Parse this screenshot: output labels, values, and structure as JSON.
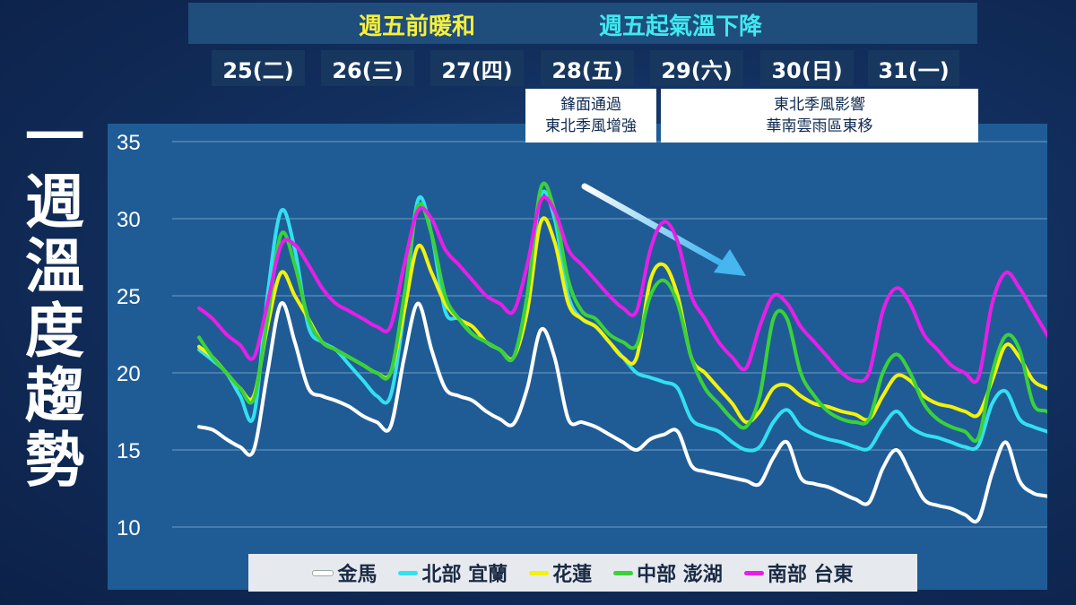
{
  "title_vertical": [
    "一",
    "週",
    "溫",
    "度",
    "趨",
    "勢"
  ],
  "banner": {
    "left": "週五前暖和",
    "right": "週五起氣溫下降"
  },
  "days": [
    "25(二)",
    "26(三)",
    "27(四)",
    "28(五)",
    "29(六)",
    "30(日)",
    "31(一)"
  ],
  "notes": {
    "front": [
      "鋒面通過",
      "東北季風增強"
    ],
    "monsoon": [
      "東北季風影響",
      "華南雲雨區東移"
    ]
  },
  "colors": {
    "金馬": "#ffffff",
    "北部 宜蘭": "#32e0f0",
    "花蓮": "#f2f20a",
    "中部 澎湖": "#3ad13a",
    "南部 台東": "#e81ee8"
  },
  "chart_data": {
    "type": "line",
    "ylim": [
      10,
      35
    ],
    "yticks": [
      35,
      30,
      25,
      20,
      15,
      10
    ],
    "points_per_day": 8,
    "grid": true,
    "legend": "bottom",
    "series": [
      {
        "name": "金馬",
        "values": [
          16.5,
          16.3,
          15.7,
          15.2,
          15.0,
          20.0,
          24.5,
          22.0,
          19.0,
          18.5,
          18.2,
          17.8,
          17.2,
          16.8,
          16.5,
          21.0,
          24.5,
          21.5,
          19.0,
          18.5,
          18.2,
          17.5,
          17.0,
          16.7,
          19.0,
          22.8,
          21.0,
          17.0,
          16.8,
          16.5,
          16.0,
          15.5,
          15.0,
          15.7,
          16.0,
          16.2,
          14.0,
          13.6,
          13.4,
          13.2,
          13.0,
          12.8,
          14.5,
          15.5,
          13.2,
          12.8,
          12.6,
          12.2,
          11.8,
          11.6,
          13.8,
          15.0,
          13.5,
          11.8,
          11.4,
          11.2,
          10.8,
          10.5,
          13.5,
          15.5,
          13.0,
          12.2,
          12.0,
          11.7,
          11.4
        ]
      },
      {
        "name": "北部 宜蘭",
        "values": [
          21.5,
          20.8,
          20.0,
          18.5,
          17.2,
          25.0,
          30.5,
          28.0,
          23.0,
          22.0,
          21.5,
          20.5,
          19.5,
          18.5,
          18.5,
          24.0,
          31.2,
          29.0,
          24.0,
          23.5,
          22.5,
          22.0,
          21.5,
          21.0,
          25.0,
          31.5,
          30.0,
          25.0,
          23.5,
          23.0,
          22.0,
          21.0,
          20.0,
          19.7,
          19.4,
          19.0,
          17.0,
          16.5,
          16.2,
          15.5,
          15.0,
          15.2,
          16.8,
          17.6,
          16.5,
          16.0,
          15.7,
          15.5,
          15.2,
          15.1,
          16.5,
          17.5,
          16.5,
          16.0,
          15.8,
          15.5,
          15.2,
          15.3,
          18.0,
          18.8,
          17.0,
          16.5,
          16.2,
          15.9,
          15.6
        ]
      },
      {
        "name": "花蓮",
        "values": [
          21.7,
          21.0,
          20.0,
          19.0,
          18.5,
          23.0,
          26.5,
          25.0,
          23.5,
          22.0,
          21.5,
          21.0,
          20.5,
          20.0,
          20.0,
          24.0,
          28.2,
          26.5,
          24.5,
          23.5,
          23.0,
          22.0,
          21.5,
          21.0,
          24.0,
          29.8,
          28.5,
          24.5,
          23.5,
          23.0,
          22.0,
          21.0,
          21.0,
          26.0,
          27.0,
          25.0,
          21.0,
          20.0,
          19.0,
          18.0,
          16.8,
          17.5,
          19.0,
          19.2,
          18.5,
          18.0,
          17.8,
          17.5,
          17.3,
          17.0,
          18.5,
          19.8,
          19.5,
          18.5,
          18.0,
          17.8,
          17.5,
          17.3,
          19.5,
          21.8,
          21.0,
          19.5,
          19.0,
          18.6,
          18.0
        ]
      },
      {
        "name": "中部 澎湖",
        "values": [
          22.3,
          21.0,
          20.0,
          19.0,
          18.3,
          23.5,
          29.0,
          27.0,
          23.5,
          22.0,
          21.5,
          21.0,
          20.5,
          20.0,
          20.0,
          25.0,
          30.8,
          29.0,
          25.0,
          23.5,
          22.5,
          22.0,
          21.5,
          21.0,
          25.0,
          32.0,
          30.5,
          26.0,
          24.0,
          23.5,
          22.5,
          22.0,
          21.8,
          25.0,
          26.0,
          24.5,
          21.0,
          19.0,
          18.0,
          17.0,
          16.5,
          18.5,
          23.5,
          23.5,
          20.0,
          18.5,
          17.5,
          17.0,
          16.8,
          17.0,
          20.0,
          21.2,
          20.0,
          18.0,
          17.0,
          16.5,
          16.2,
          15.8,
          20.0,
          22.4,
          21.5,
          18.0,
          17.5,
          17.0,
          16.4
        ]
      },
      {
        "name": "南部 台東",
        "values": [
          24.2,
          23.5,
          22.5,
          21.8,
          21.0,
          24.5,
          28.3,
          28.3,
          27.0,
          25.5,
          24.5,
          24.0,
          23.5,
          23.0,
          23.0,
          27.0,
          30.5,
          30.0,
          28.0,
          27.0,
          26.0,
          25.0,
          24.5,
          24.0,
          27.0,
          31.2,
          30.5,
          28.0,
          27.0,
          26.0,
          25.0,
          24.2,
          24.0,
          28.0,
          29.8,
          28.5,
          25.0,
          23.5,
          22.0,
          21.0,
          20.3,
          23.0,
          25.0,
          24.5,
          23.0,
          22.0,
          21.0,
          20.0,
          19.5,
          20.0,
          24.0,
          25.5,
          24.5,
          22.5,
          21.5,
          20.5,
          20.0,
          19.7,
          24.5,
          26.5,
          25.5,
          24.0,
          22.5,
          21.0,
          20.3
        ]
      }
    ]
  }
}
